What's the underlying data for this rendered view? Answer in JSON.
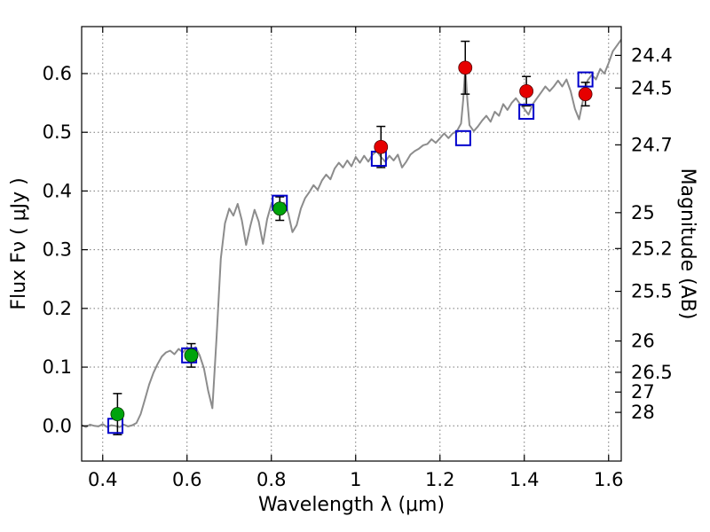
{
  "figure": {
    "xlabel": "Wavelength  λ (μm)",
    "ylabel_left": "Flux  Fν  ( μJy )",
    "ylabel_right": "Magnitude (AB)"
  },
  "chart_data": {
    "type": "line",
    "title": "",
    "xlabel": "Wavelength λ (μm)",
    "ylabel": "Flux Fν (μJy)",
    "ylabel_right": "Magnitude (AB)",
    "xlim": [
      0.35,
      1.63
    ],
    "ylim": [
      -0.06,
      0.68
    ],
    "grid": true,
    "grid_style": "dotted",
    "x_ticks": [
      0.4,
      0.6,
      0.8,
      1.0,
      1.2,
      1.4,
      1.6
    ],
    "x_tick_labels": [
      "0.4",
      "0.6",
      "0.8",
      "1",
      "1.2",
      "1.4",
      "1.6"
    ],
    "y_ticks": [
      0.0,
      0.1,
      0.2,
      0.3,
      0.4,
      0.5,
      0.6
    ],
    "y_tick_labels": [
      "0.0",
      "0.1",
      "0.2",
      "0.3",
      "0.4",
      "0.5",
      "0.6"
    ],
    "right_axis": {
      "label": "Magnitude (AB)",
      "ticks": [
        {
          "label": "24.4",
          "flux": 0.631
        },
        {
          "label": "24.5",
          "flux": 0.5754
        },
        {
          "label": "24.7",
          "flux": 0.4786
        },
        {
          "label": "25",
          "flux": 0.3631
        },
        {
          "label": "25.2",
          "flux": 0.302
        },
        {
          "label": "25.5",
          "flux": 0.2291
        },
        {
          "label": "26",
          "flux": 0.1445
        },
        {
          "label": "26.5",
          "flux": 0.0912
        },
        {
          "label": "27",
          "flux": 0.0575
        },
        {
          "label": "28",
          "flux": 0.0229
        }
      ]
    },
    "series": [
      {
        "name": "model-spectrum",
        "kind": "line",
        "color": "#8c8c8c",
        "linewidth": 2,
        "points": [
          [
            0.35,
            0.001
          ],
          [
            0.36,
            -0.002
          ],
          [
            0.37,
            0.002
          ],
          [
            0.38,
            0.0
          ],
          [
            0.39,
            -0.001
          ],
          [
            0.4,
            0.003
          ],
          [
            0.41,
            -0.002
          ],
          [
            0.42,
            0.001
          ],
          [
            0.43,
            0.0
          ],
          [
            0.44,
            -0.002
          ],
          [
            0.45,
            0.002
          ],
          [
            0.46,
            -0.001
          ],
          [
            0.47,
            0.001
          ],
          [
            0.48,
            0.005
          ],
          [
            0.49,
            0.02
          ],
          [
            0.5,
            0.045
          ],
          [
            0.51,
            0.07
          ],
          [
            0.52,
            0.09
          ],
          [
            0.53,
            0.105
          ],
          [
            0.54,
            0.118
          ],
          [
            0.55,
            0.125
          ],
          [
            0.56,
            0.128
          ],
          [
            0.57,
            0.122
          ],
          [
            0.58,
            0.131
          ],
          [
            0.59,
            0.125
          ],
          [
            0.6,
            0.133
          ],
          [
            0.61,
            0.127
          ],
          [
            0.62,
            0.134
          ],
          [
            0.63,
            0.12
          ],
          [
            0.64,
            0.098
          ],
          [
            0.65,
            0.06
          ],
          [
            0.66,
            0.03
          ],
          [
            0.67,
            0.15
          ],
          [
            0.68,
            0.285
          ],
          [
            0.69,
            0.345
          ],
          [
            0.7,
            0.37
          ],
          [
            0.71,
            0.358
          ],
          [
            0.72,
            0.378
          ],
          [
            0.73,
            0.35
          ],
          [
            0.74,
            0.308
          ],
          [
            0.75,
            0.34
          ],
          [
            0.76,
            0.368
          ],
          [
            0.77,
            0.348
          ],
          [
            0.78,
            0.31
          ],
          [
            0.79,
            0.352
          ],
          [
            0.8,
            0.378
          ],
          [
            0.81,
            0.368
          ],
          [
            0.82,
            0.36
          ],
          [
            0.83,
            0.38
          ],
          [
            0.84,
            0.362
          ],
          [
            0.85,
            0.33
          ],
          [
            0.86,
            0.342
          ],
          [
            0.87,
            0.37
          ],
          [
            0.88,
            0.388
          ],
          [
            0.89,
            0.398
          ],
          [
            0.9,
            0.41
          ],
          [
            0.91,
            0.402
          ],
          [
            0.92,
            0.418
          ],
          [
            0.93,
            0.428
          ],
          [
            0.94,
            0.42
          ],
          [
            0.95,
            0.438
          ],
          [
            0.96,
            0.448
          ],
          [
            0.97,
            0.44
          ],
          [
            0.98,
            0.452
          ],
          [
            0.99,
            0.442
          ],
          [
            1.0,
            0.458
          ],
          [
            1.01,
            0.448
          ],
          [
            1.02,
            0.46
          ],
          [
            1.03,
            0.45
          ],
          [
            1.04,
            0.462
          ],
          [
            1.05,
            0.468
          ],
          [
            1.06,
            0.458
          ],
          [
            1.07,
            0.45
          ],
          [
            1.08,
            0.46
          ],
          [
            1.09,
            0.452
          ],
          [
            1.1,
            0.462
          ],
          [
            1.11,
            0.44
          ],
          [
            1.12,
            0.45
          ],
          [
            1.13,
            0.462
          ],
          [
            1.14,
            0.468
          ],
          [
            1.15,
            0.472
          ],
          [
            1.16,
            0.478
          ],
          [
            1.17,
            0.48
          ],
          [
            1.18,
            0.488
          ],
          [
            1.19,
            0.482
          ],
          [
            1.2,
            0.49
          ],
          [
            1.21,
            0.498
          ],
          [
            1.22,
            0.49
          ],
          [
            1.23,
            0.498
          ],
          [
            1.24,
            0.502
          ],
          [
            1.25,
            0.515
          ],
          [
            1.255,
            0.555
          ],
          [
            1.26,
            0.61
          ],
          [
            1.265,
            0.555
          ],
          [
            1.27,
            0.512
          ],
          [
            1.28,
            0.502
          ],
          [
            1.29,
            0.51
          ],
          [
            1.3,
            0.52
          ],
          [
            1.31,
            0.528
          ],
          [
            1.32,
            0.518
          ],
          [
            1.33,
            0.535
          ],
          [
            1.34,
            0.528
          ],
          [
            1.35,
            0.548
          ],
          [
            1.36,
            0.538
          ],
          [
            1.37,
            0.55
          ],
          [
            1.38,
            0.558
          ],
          [
            1.39,
            0.548
          ],
          [
            1.4,
            0.54
          ],
          [
            1.41,
            0.53
          ],
          [
            1.42,
            0.548
          ],
          [
            1.43,
            0.558
          ],
          [
            1.44,
            0.568
          ],
          [
            1.45,
            0.578
          ],
          [
            1.46,
            0.57
          ],
          [
            1.47,
            0.578
          ],
          [
            1.48,
            0.588
          ],
          [
            1.49,
            0.578
          ],
          [
            1.5,
            0.59
          ],
          [
            1.51,
            0.57
          ],
          [
            1.52,
            0.54
          ],
          [
            1.53,
            0.522
          ],
          [
            1.54,
            0.558
          ],
          [
            1.55,
            0.588
          ],
          [
            1.56,
            0.598
          ],
          [
            1.57,
            0.59
          ],
          [
            1.58,
            0.608
          ],
          [
            1.59,
            0.6
          ],
          [
            1.6,
            0.618
          ],
          [
            1.61,
            0.638
          ],
          [
            1.62,
            0.648
          ],
          [
            1.63,
            0.658
          ]
        ]
      },
      {
        "name": "observed-photometry-optical",
        "kind": "scatter",
        "marker": "circle",
        "color": "#00a40c",
        "edge": "#003300",
        "size": 15,
        "points": [
          {
            "x": 0.435,
            "y": 0.02,
            "yerr": 0.035
          },
          {
            "x": 0.61,
            "y": 0.12,
            "yerr": 0.02
          },
          {
            "x": 0.82,
            "y": 0.37,
            "yerr": 0.02
          }
        ]
      },
      {
        "name": "observed-photometry-infrared",
        "kind": "scatter",
        "marker": "circle",
        "color": "#e60000",
        "edge": "#550000",
        "size": 15,
        "points": [
          {
            "x": 1.06,
            "y": 0.475,
            "yerr": 0.035
          },
          {
            "x": 1.26,
            "y": 0.61,
            "yerr": 0.045
          },
          {
            "x": 1.405,
            "y": 0.57,
            "yerr": 0.025
          },
          {
            "x": 1.545,
            "y": 0.565,
            "yerr": 0.02
          }
        ]
      },
      {
        "name": "model-photometry",
        "kind": "scatter",
        "marker": "open-square",
        "color": "#0000cc",
        "size": 16,
        "points": [
          {
            "x": 0.43,
            "y": 0.0
          },
          {
            "x": 0.605,
            "y": 0.12
          },
          {
            "x": 0.82,
            "y": 0.38
          },
          {
            "x": 1.055,
            "y": 0.455
          },
          {
            "x": 1.255,
            "y": 0.49
          },
          {
            "x": 1.405,
            "y": 0.535
          },
          {
            "x": 1.545,
            "y": 0.59
          }
        ]
      }
    ]
  }
}
